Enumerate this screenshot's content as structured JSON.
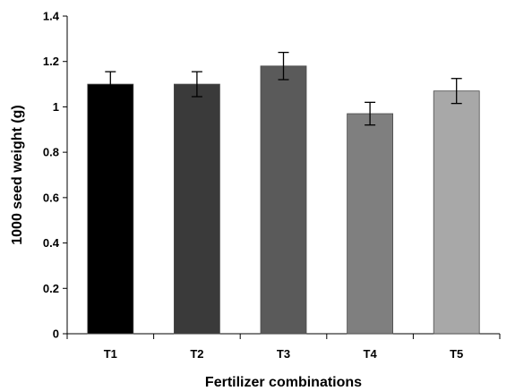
{
  "chart_data": {
    "type": "bar",
    "title": "",
    "xlabel": "Fertilizer combinations",
    "ylabel": "1000 seed weight (g)",
    "categories": [
      "T1",
      "T2",
      "T3",
      "T4",
      "T5"
    ],
    "values": [
      1.1,
      1.1,
      1.18,
      0.97,
      1.07
    ],
    "errors": [
      0.055,
      0.055,
      0.06,
      0.05,
      0.055
    ],
    "colors": [
      "#000000",
      "#3a3a3a",
      "#5a5a5a",
      "#7f7f7f",
      "#a8a8a8"
    ],
    "ylim": [
      0,
      1.4
    ],
    "yticks": [
      "0",
      "0.2",
      "0.4",
      "0.6",
      "0.8",
      "1",
      "1.2",
      "1.4"
    ],
    "grid": false,
    "legend": "none"
  }
}
